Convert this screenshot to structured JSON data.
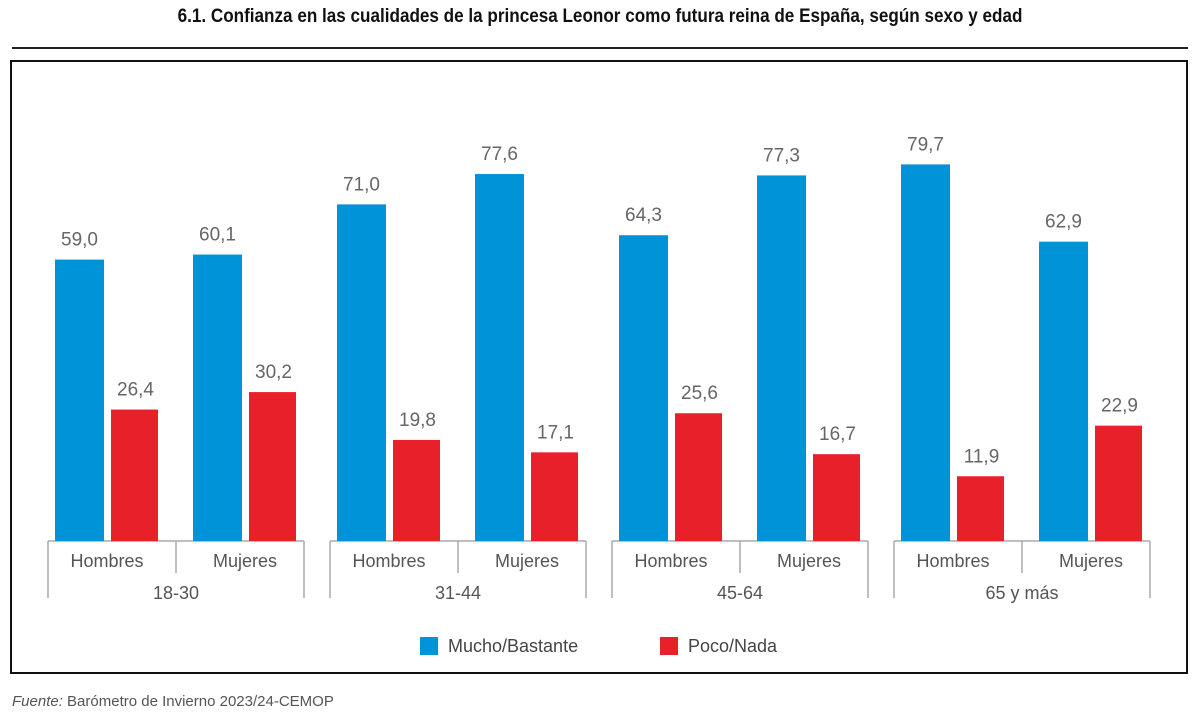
{
  "title": "6.1. Confianza en las cualidades de la princesa Leonor como futura reina de España, según sexo y edad",
  "source_label": "Fuente:",
  "source_text": " Barómetro de Invierno 2023/24-CEMOP",
  "chart_data": {
    "type": "bar",
    "title": "6.1. Confianza en las cualidades de la princesa Leonor como futura reina de España, según sexo y edad",
    "groups": [
      "18-30",
      "31-44",
      "45-64",
      "65 y más"
    ],
    "subcategories": [
      "Hombres",
      "Mujeres"
    ],
    "categories": [
      "18-30 Hombres",
      "18-30 Mujeres",
      "31-44 Hombres",
      "31-44 Mujeres",
      "45-64 Hombres",
      "45-64 Mujeres",
      "65 y más Hombres",
      "65 y más Mujeres"
    ],
    "series": [
      {
        "name": "Mucho/Bastante",
        "color": "#0093d8",
        "values": [
          59.0,
          60.1,
          71.0,
          77.6,
          64.3,
          77.3,
          79.7,
          62.9
        ],
        "labels": [
          "59,0",
          "60,1",
          "71,0",
          "77,6",
          "64,3",
          "77,3",
          "79,7",
          "62,9"
        ]
      },
      {
        "name": "Poco/Nada",
        "color": "#e8202a",
        "values": [
          26.4,
          30.2,
          19.8,
          17.1,
          25.6,
          16.7,
          11.9,
          22.9
        ],
        "labels": [
          "26,4",
          "30,2",
          "19,8",
          "17,1",
          "25,6",
          "16,7",
          "11,9",
          "22,9"
        ]
      }
    ],
    "legend_position": "bottom",
    "grid": false,
    "xlabel": "",
    "ylabel": ""
  }
}
